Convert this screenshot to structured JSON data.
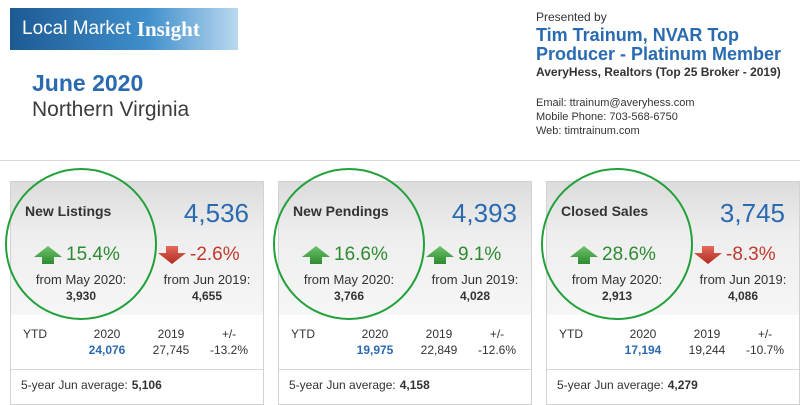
{
  "header": {
    "banner_prefix": "Local Market",
    "banner_emph": "Insight",
    "month": "June 2020",
    "region": "Northern Virginia"
  },
  "presenter": {
    "presented_by": "Presented by",
    "agent_line1": "Tim Trainum, NVAR Top",
    "agent_line2": "Producer - Platinum Member",
    "broker": "AveryHess, Realtors (Top 25 Broker - 2019)",
    "email": "Email: ttrainum@averyhess.com",
    "phone": "Mobile Phone: 703-568-6750",
    "web": "Web: timtrainum.com"
  },
  "colors": {
    "accent": "#2a6ab0",
    "up": "#2e8b30",
    "down": "#c0392b",
    "highlight": "#22a03a"
  },
  "cards": [
    {
      "label": "New Listings",
      "value": "4,536",
      "mom_pct": "15.4%",
      "mom_dir": "up",
      "mom_from": "from May 2020:",
      "mom_val": "3,930",
      "yoy_pct": "-2.6%",
      "yoy_dir": "down",
      "yoy_from": "from Jun 2019:",
      "yoy_val": "4,655",
      "ytd_label": "YTD",
      "ytd_h_cur": "2020",
      "ytd_h_prev": "2019",
      "ytd_h_diff": "+/-",
      "ytd_cur": "24,076",
      "ytd_prev": "27,745",
      "ytd_diff": "-13.2%",
      "avg_label": "5-year Jun average:",
      "avg_val": "5,106"
    },
    {
      "label": "New Pendings",
      "value": "4,393",
      "mom_pct": "16.6%",
      "mom_dir": "up",
      "mom_from": "from May 2020:",
      "mom_val": "3,766",
      "yoy_pct": "9.1%",
      "yoy_dir": "up",
      "yoy_from": "from Jun 2019:",
      "yoy_val": "4,028",
      "ytd_label": "YTD",
      "ytd_h_cur": "2020",
      "ytd_h_prev": "2019",
      "ytd_h_diff": "+/-",
      "ytd_cur": "19,975",
      "ytd_prev": "22,849",
      "ytd_diff": "-12.6%",
      "avg_label": "5-year Jun average:",
      "avg_val": "4,158"
    },
    {
      "label": "Closed Sales",
      "value": "3,745",
      "mom_pct": "28.6%",
      "mom_dir": "up",
      "mom_from": "from May 2020:",
      "mom_val": "2,913",
      "yoy_pct": "-8.3%",
      "yoy_dir": "down",
      "yoy_from": "from Jun 2019:",
      "yoy_val": "4,086",
      "ytd_label": "YTD",
      "ytd_h_cur": "2020",
      "ytd_h_prev": "2019",
      "ytd_h_diff": "+/-",
      "ytd_cur": "17,194",
      "ytd_prev": "19,244",
      "ytd_diff": "-10.7%",
      "avg_label": "5-year Jun average:",
      "avg_val": "4,279"
    }
  ]
}
